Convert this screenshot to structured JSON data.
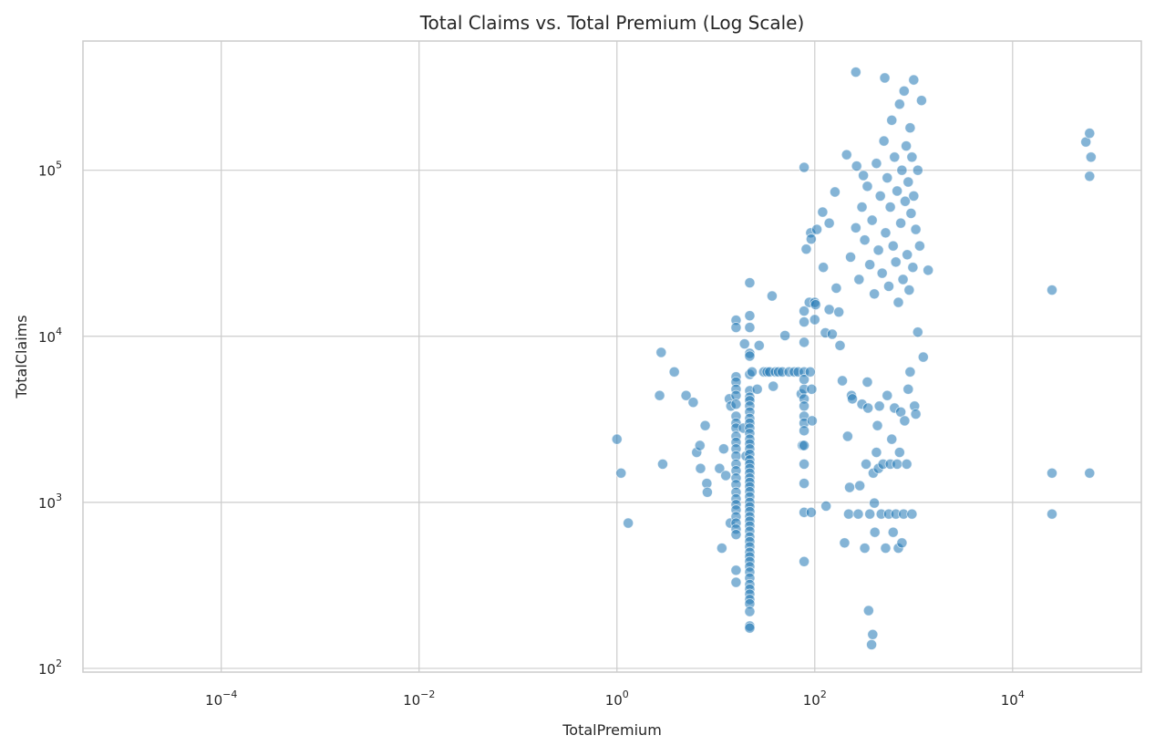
{
  "chart_data": {
    "type": "scatter",
    "title": "Total Claims vs. Total Premium (Log Scale)",
    "xlabel": "TotalPremium",
    "ylabel": "TotalClaims",
    "xscale": "log",
    "yscale": "log",
    "xlim": [
      4e-06,
      200000
    ],
    "ylim": [
      95,
      600000
    ],
    "grid": true,
    "colors": {
      "points": "#1f77b4",
      "grid": "#cccccc",
      "background": "#ffffff"
    },
    "x_ticks": [
      {
        "base": "10",
        "exp": "−4",
        "value": 0.0001
      },
      {
        "base": "10",
        "exp": "−2",
        "value": 0.01
      },
      {
        "base": "10",
        "exp": "0",
        "value": 1
      },
      {
        "base": "10",
        "exp": "2",
        "value": 100
      },
      {
        "base": "10",
        "exp": "4",
        "value": 10000
      }
    ],
    "y_ticks": [
      {
        "base": "10",
        "exp": "2",
        "value": 100
      },
      {
        "base": "10",
        "exp": "3",
        "value": 1000
      },
      {
        "base": "10",
        "exp": "4",
        "value": 10000
      },
      {
        "base": "10",
        "exp": "5",
        "value": 100000
      }
    ],
    "points": [
      [
        1.0,
        2400
      ],
      [
        1.1,
        1500
      ],
      [
        1.3,
        750
      ],
      [
        2.8,
        8000
      ],
      [
        2.7,
        4400
      ],
      [
        2.9,
        1700
      ],
      [
        3.8,
        6100
      ],
      [
        5.0,
        4400
      ],
      [
        5.9,
        4000
      ],
      [
        6.4,
        2000
      ],
      [
        6.9,
        2200
      ],
      [
        7.0,
        1600
      ],
      [
        7.8,
        2900
      ],
      [
        8.1,
        1300
      ],
      [
        8.2,
        1150
      ],
      [
        10.9,
        1600
      ],
      [
        11.5,
        530
      ],
      [
        12.0,
        2100
      ],
      [
        12.6,
        1450
      ],
      [
        13.7,
        4200
      ],
      [
        14.2,
        3800
      ],
      [
        14.0,
        750
      ],
      [
        16.0,
        12500
      ],
      [
        16.0,
        11300
      ],
      [
        16.0,
        5700
      ],
      [
        16.0,
        5300
      ],
      [
        16.0,
        4800
      ],
      [
        16.0,
        4400
      ],
      [
        16.0,
        3900
      ],
      [
        16.0,
        3300
      ],
      [
        16.0,
        3000
      ],
      [
        16.0,
        2800
      ],
      [
        16.0,
        2500
      ],
      [
        16.0,
        2300
      ],
      [
        16.0,
        2100
      ],
      [
        16.0,
        1900
      ],
      [
        16.0,
        1700
      ],
      [
        16.0,
        1550
      ],
      [
        16.0,
        1400
      ],
      [
        16.0,
        1280
      ],
      [
        16.0,
        1150
      ],
      [
        16.0,
        1050
      ],
      [
        16.0,
        970
      ],
      [
        16.0,
        900
      ],
      [
        16.0,
        820
      ],
      [
        16.0,
        750
      ],
      [
        16.0,
        690
      ],
      [
        16.0,
        640
      ],
      [
        16.0,
        390
      ],
      [
        16.0,
        330
      ],
      [
        19.5,
        9000
      ],
      [
        19.0,
        2800
      ],
      [
        20.2,
        1900
      ],
      [
        22.0,
        21000
      ],
      [
        22.0,
        13300
      ],
      [
        22.0,
        11300
      ],
      [
        22.0,
        7900
      ],
      [
        22.0,
        7600
      ],
      [
        22.0,
        5900
      ],
      [
        22.0,
        4700
      ],
      [
        22.0,
        4300
      ],
      [
        22.0,
        4100
      ],
      [
        22.0,
        3800
      ],
      [
        22.0,
        3500
      ],
      [
        22.0,
        3200
      ],
      [
        22.0,
        3000
      ],
      [
        22.0,
        2800
      ],
      [
        22.0,
        2600
      ],
      [
        22.0,
        2400
      ],
      [
        22.0,
        2250
      ],
      [
        22.0,
        2100
      ],
      [
        22.0,
        1950
      ],
      [
        22.0,
        1800
      ],
      [
        22.0,
        1700
      ],
      [
        22.0,
        1600
      ],
      [
        22.0,
        1500
      ],
      [
        22.0,
        1400
      ],
      [
        22.0,
        1320
      ],
      [
        22.0,
        1240
      ],
      [
        22.0,
        1160
      ],
      [
        22.0,
        1080
      ],
      [
        22.0,
        1000
      ],
      [
        22.0,
        940
      ],
      [
        22.0,
        880
      ],
      [
        22.0,
        820
      ],
      [
        22.0,
        770
      ],
      [
        22.0,
        720
      ],
      [
        22.0,
        670
      ],
      [
        22.0,
        620
      ],
      [
        22.0,
        580
      ],
      [
        22.0,
        540
      ],
      [
        22.0,
        500
      ],
      [
        22.0,
        470
      ],
      [
        22.0,
        440
      ],
      [
        22.0,
        410
      ],
      [
        22.0,
        380
      ],
      [
        22.0,
        350
      ],
      [
        22.0,
        320
      ],
      [
        22.0,
        300
      ],
      [
        22.0,
        280
      ],
      [
        22.0,
        260
      ],
      [
        22.0,
        245
      ],
      [
        22.0,
        220
      ],
      [
        22.0,
        180
      ],
      [
        22.0,
        175
      ],
      [
        23.2,
        6100
      ],
      [
        26.2,
        4800
      ],
      [
        27.4,
        8800
      ],
      [
        30.5,
        6100
      ],
      [
        33.0,
        6100
      ],
      [
        35.0,
        6100
      ],
      [
        37.0,
        17500
      ],
      [
        38.0,
        5000
      ],
      [
        40.0,
        6100
      ],
      [
        43.0,
        6100
      ],
      [
        47.0,
        6100
      ],
      [
        50.0,
        10100
      ],
      [
        55.0,
        6100
      ],
      [
        62.0,
        6100
      ],
      [
        68.0,
        6100
      ],
      [
        73.0,
        4500
      ],
      [
        75.0,
        2200
      ],
      [
        78.0,
        14200
      ],
      [
        78.0,
        12200
      ],
      [
        78.0,
        9200
      ],
      [
        78.0,
        6100
      ],
      [
        78.0,
        5500
      ],
      [
        78.0,
        4800
      ],
      [
        78.0,
        4200
      ],
      [
        78.0,
        3800
      ],
      [
        78.0,
        3300
      ],
      [
        78.0,
        3000
      ],
      [
        78.0,
        2700
      ],
      [
        78.0,
        2200
      ],
      [
        78.0,
        1700
      ],
      [
        78.0,
        1300
      ],
      [
        78.0,
        870
      ],
      [
        78.0,
        440
      ],
      [
        78.0,
        104000
      ],
      [
        82.0,
        33500
      ],
      [
        88.0,
        16000
      ],
      [
        90.0,
        6100
      ],
      [
        91.0,
        42000
      ],
      [
        92.0,
        38500
      ],
      [
        93.0,
        4800
      ],
      [
        94.0,
        3100
      ],
      [
        92.0,
        870
      ],
      [
        100.0,
        16000
      ],
      [
        102.0,
        15500
      ],
      [
        100.0,
        12600
      ],
      [
        105.0,
        44000
      ],
      [
        120.0,
        56000
      ],
      [
        122.0,
        26000
      ],
      [
        128.0,
        10500
      ],
      [
        130.0,
        950
      ],
      [
        140.0,
        48000
      ],
      [
        140.0,
        14500
      ],
      [
        150.0,
        10300
      ],
      [
        160.0,
        74000
      ],
      [
        165.0,
        19500
      ],
      [
        175.0,
        14000
      ],
      [
        180.0,
        8800
      ],
      [
        190.0,
        5400
      ],
      [
        200.0,
        570
      ],
      [
        210.0,
        124000
      ],
      [
        215.0,
        2500
      ],
      [
        220.0,
        850
      ],
      [
        225.0,
        1230
      ],
      [
        235.0,
        4400
      ],
      [
        240.0,
        4200
      ],
      [
        260.0,
        390000
      ],
      [
        265.0,
        106000
      ],
      [
        275.0,
        850
      ],
      [
        285.0,
        1260
      ],
      [
        300.0,
        3900
      ],
      [
        310.0,
        93000
      ],
      [
        320.0,
        530
      ],
      [
        330.0,
        1700
      ],
      [
        340.0,
        5300
      ],
      [
        345.0,
        3700
      ],
      [
        350.0,
        223
      ],
      [
        360.0,
        850
      ],
      [
        375.0,
        139
      ],
      [
        385.0,
        160
      ],
      [
        390.0,
        1500
      ],
      [
        400.0,
        990
      ],
      [
        405.0,
        660
      ],
      [
        420.0,
        2000
      ],
      [
        430.0,
        2900
      ],
      [
        440.0,
        1600
      ],
      [
        450.0,
        3800
      ],
      [
        470.0,
        850
      ],
      [
        490.0,
        1700
      ],
      [
        510.0,
        360000
      ],
      [
        520.0,
        530
      ],
      [
        540.0,
        4400
      ],
      [
        560.0,
        850
      ],
      [
        580.0,
        1700
      ],
      [
        600.0,
        2400
      ],
      [
        620.0,
        660
      ],
      [
        640.0,
        3700
      ],
      [
        660.0,
        850
      ],
      [
        680.0,
        1700
      ],
      [
        700.0,
        530
      ],
      [
        720.0,
        2000
      ],
      [
        740.0,
        3500
      ],
      [
        760.0,
        570
      ],
      [
        790.0,
        850
      ],
      [
        810.0,
        3100
      ],
      [
        850.0,
        1700
      ],
      [
        880.0,
        4800
      ],
      [
        920.0,
        6100
      ],
      [
        960.0,
        850
      ],
      [
        1000.0,
        350000
      ],
      [
        1020.0,
        3800
      ],
      [
        1050.0,
        3400
      ],
      [
        1100.0,
        10600
      ],
      [
        1200.0,
        263000
      ],
      [
        1250.0,
        7500
      ],
      [
        1400.0,
        25000
      ],
      [
        230.0,
        30000
      ],
      [
        260.0,
        45000
      ],
      [
        280.0,
        22000
      ],
      [
        300.0,
        60000
      ],
      [
        320.0,
        38000
      ],
      [
        340.0,
        80000
      ],
      [
        360.0,
        27000
      ],
      [
        380.0,
        50000
      ],
      [
        400.0,
        18000
      ],
      [
        420.0,
        110000
      ],
      [
        440.0,
        33000
      ],
      [
        460.0,
        70000
      ],
      [
        480.0,
        24000
      ],
      [
        500.0,
        150000
      ],
      [
        520.0,
        42000
      ],
      [
        540.0,
        90000
      ],
      [
        560.0,
        20000
      ],
      [
        580.0,
        60000
      ],
      [
        600.0,
        200000
      ],
      [
        620.0,
        35000
      ],
      [
        640.0,
        120000
      ],
      [
        660.0,
        28000
      ],
      [
        680.0,
        75000
      ],
      [
        700.0,
        16000
      ],
      [
        720.0,
        250000
      ],
      [
        740.0,
        48000
      ],
      [
        760.0,
        100000
      ],
      [
        780.0,
        22000
      ],
      [
        800.0,
        300000
      ],
      [
        820.0,
        65000
      ],
      [
        840.0,
        140000
      ],
      [
        860.0,
        31000
      ],
      [
        880.0,
        85000
      ],
      [
        900.0,
        19000
      ],
      [
        920.0,
        180000
      ],
      [
        940.0,
        55000
      ],
      [
        960.0,
        120000
      ],
      [
        980.0,
        26000
      ],
      [
        1000.0,
        70000
      ],
      [
        1050.0,
        44000
      ],
      [
        1100.0,
        100000
      ],
      [
        1150.0,
        35000
      ],
      [
        25000.0,
        19000
      ],
      [
        25000.0,
        1500
      ],
      [
        25000.0,
        850
      ],
      [
        55000.0,
        148000
      ],
      [
        60000.0,
        167000
      ],
      [
        62000.0,
        120000
      ],
      [
        60000.0,
        92000
      ],
      [
        60000.0,
        1500
      ]
    ]
  }
}
